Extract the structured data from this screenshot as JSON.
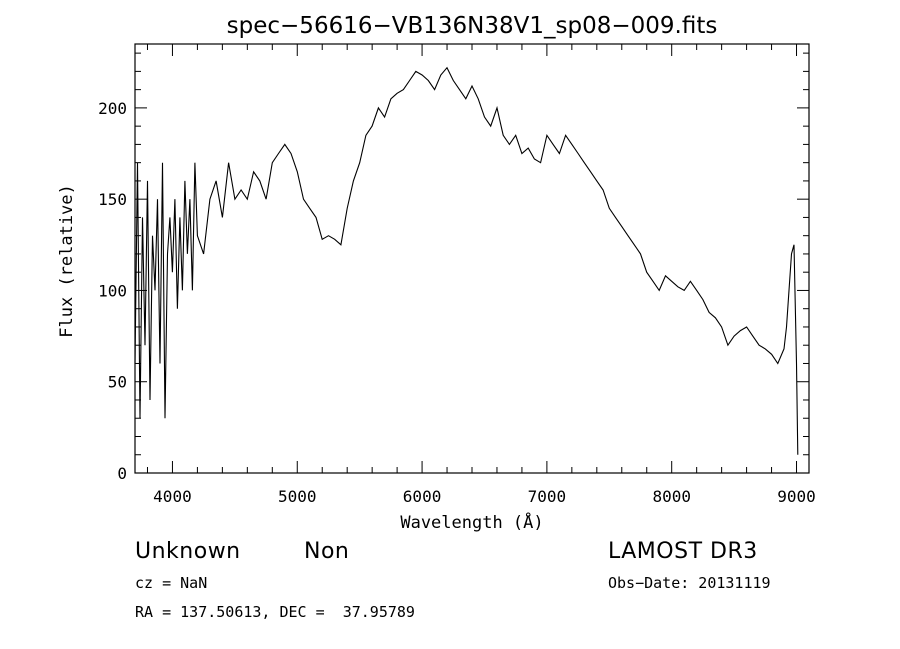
{
  "chart_data": {
    "type": "line",
    "title": "spec−56616−VB136N38V1_sp08−009.fits",
    "xlabel": "Wavelength (Å)",
    "ylabel": "Flux (relative)",
    "xlim": [
      3700,
      9100
    ],
    "ylim": [
      0,
      235
    ],
    "xticks": [
      4000,
      5000,
      6000,
      7000,
      8000,
      9000
    ],
    "yticks": [
      0,
      50,
      100,
      150,
      200
    ],
    "grid": false,
    "line_color": "#000000",
    "series": [
      {
        "x": [
          3700,
          3720,
          3740,
          3760,
          3780,
          3800,
          3820,
          3840,
          3860,
          3880,
          3900,
          3920,
          3940,
          3960,
          3980,
          4000,
          4020,
          4040,
          4060,
          4080,
          4100,
          4120,
          4140,
          4160,
          4180,
          4200,
          4250,
          4300,
          4350,
          4400,
          4450,
          4500,
          4550,
          4600,
          4650,
          4700,
          4750,
          4800,
          4850,
          4900,
          4950,
          5000,
          5050,
          5100,
          5150,
          5200,
          5250,
          5300,
          5350,
          5400,
          5450,
          5500,
          5550,
          5600,
          5650,
          5700,
          5750,
          5800,
          5850,
          5900,
          5950,
          6000,
          6050,
          6100,
          6150,
          6200,
          6250,
          6300,
          6350,
          6400,
          6450,
          6500,
          6550,
          6600,
          6650,
          6700,
          6750,
          6800,
          6850,
          6900,
          6950,
          7000,
          7050,
          7100,
          7150,
          7200,
          7250,
          7300,
          7350,
          7400,
          7450,
          7500,
          7550,
          7600,
          7650,
          7700,
          7750,
          7800,
          7850,
          7900,
          7950,
          8000,
          8050,
          8100,
          8150,
          8200,
          8250,
          8300,
          8350,
          8400,
          8450,
          8500,
          8550,
          8600,
          8650,
          8700,
          8750,
          8800,
          8850,
          8900,
          8920,
          8940,
          8960,
          8980,
          9000,
          9010
        ],
        "y": [
          60,
          170,
          30,
          140,
          70,
          160,
          40,
          130,
          100,
          150,
          60,
          170,
          30,
          120,
          140,
          110,
          150,
          90,
          140,
          100,
          160,
          120,
          150,
          100,
          170,
          130,
          120,
          150,
          160,
          140,
          170,
          150,
          155,
          150,
          165,
          160,
          150,
          170,
          175,
          180,
          175,
          165,
          150,
          145,
          140,
          128,
          130,
          128,
          125,
          145,
          160,
          170,
          185,
          190,
          200,
          195,
          205,
          208,
          210,
          215,
          220,
          218,
          215,
          210,
          218,
          222,
          215,
          210,
          205,
          212,
          205,
          195,
          190,
          200,
          185,
          180,
          185,
          175,
          178,
          172,
          170,
          185,
          180,
          175,
          185,
          180,
          175,
          170,
          165,
          160,
          155,
          145,
          140,
          135,
          130,
          125,
          120,
          110,
          105,
          100,
          108,
          105,
          102,
          100,
          105,
          100,
          95,
          88,
          85,
          80,
          70,
          75,
          78,
          80,
          75,
          70,
          68,
          65,
          60,
          68,
          80,
          100,
          120,
          125,
          60,
          10
        ]
      }
    ]
  },
  "annotations": {
    "class_label": "Unknown",
    "subclass_label": "Non",
    "survey_label": "LAMOST DR3",
    "cz_label": "cz = NaN",
    "obs_date_label": "Obs−Date: 20131119",
    "coords_label": "RA = 137.50613, DEC =  37.95789"
  }
}
